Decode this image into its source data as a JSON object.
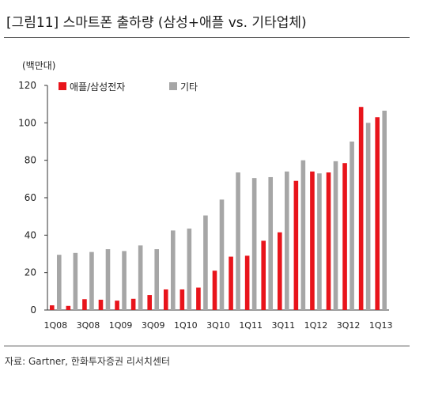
{
  "title": "[그림11] 스마트폰 출하량 (삼성+애플 vs. 기타업체)",
  "source": "자료: Gartner, 한화투자증권 리서치센터",
  "chart_data": {
    "type": "bar",
    "unit": "(백만대)",
    "categories": [
      "1Q08",
      "2Q08",
      "3Q08",
      "4Q08",
      "1Q09",
      "2Q09",
      "3Q09",
      "4Q09",
      "1Q10",
      "2Q10",
      "3Q10",
      "4Q10",
      "1Q11",
      "2Q11",
      "3Q11",
      "4Q11",
      "1Q12",
      "2Q12",
      "3Q12",
      "4Q12",
      "1Q13"
    ],
    "x_tick_labels": [
      "1Q08",
      "3Q08",
      "1Q09",
      "3Q09",
      "1Q10",
      "3Q10",
      "1Q11",
      "3Q11",
      "1Q12",
      "3Q12",
      "1Q13"
    ],
    "series": [
      {
        "name": "애플/삼성전자",
        "color": "#e8141b",
        "values": [
          2.5,
          2.2,
          5.8,
          5.5,
          5.0,
          6.0,
          8.0,
          11.0,
          11.0,
          12.0,
          21.0,
          28.5,
          29.0,
          37.0,
          41.5,
          69.0,
          74.0,
          73.5,
          78.5,
          108.5,
          103.0
        ]
      },
      {
        "name": "기타",
        "color": "#a6a6a6",
        "values": [
          29.5,
          30.5,
          31.0,
          32.5,
          31.5,
          34.5,
          32.5,
          42.5,
          43.5,
          50.5,
          59.0,
          73.5,
          70.5,
          71.0,
          74.0,
          80.0,
          73.0,
          79.5,
          90.0,
          100.0,
          106.5
        ]
      }
    ],
    "ylim": [
      0,
      120
    ],
    "y_ticks": [
      0,
      20,
      40,
      60,
      80,
      100,
      120
    ],
    "legend_position": "top-left",
    "grid": false
  }
}
